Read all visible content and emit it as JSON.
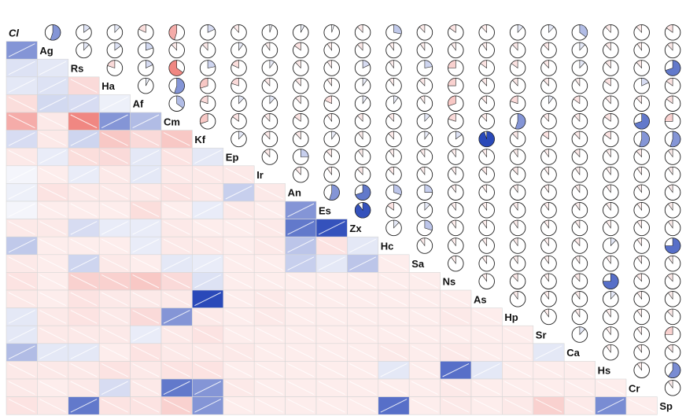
{
  "chart_data": {
    "type": "heatmap",
    "subtype": "corrgram",
    "title": "",
    "lower_panel": "shade",
    "upper_panel": "pie",
    "diagonal": "variable names",
    "colors": {
      "positive": "#1f3fb5",
      "negative": "#e8473f",
      "neutral": "#ffffff",
      "outline": "#222222"
    },
    "variables": [
      "Cl",
      "Ag",
      "Rs",
      "Ha",
      "Af",
      "Cm",
      "Kf",
      "Ep",
      "Ir",
      "An",
      "Es",
      "Zx",
      "Hc",
      "Sa",
      "Ns",
      "As",
      "Hp",
      "Sr",
      "Ca",
      "Hs",
      "Cr",
      "Sp"
    ],
    "correlations": [
      [
        1,
        0.55,
        0.15,
        0.12,
        -0.18,
        -0.45,
        0.18,
        -0.12,
        0.05,
        0.08,
        0.05,
        -0.12,
        0.28,
        -0.12,
        -0.15,
        -0.12,
        0.12,
        0.12,
        0.35,
        -0.12,
        -0.12,
        -0.15
      ],
      [
        0.55,
        1,
        0.12,
        0.15,
        0.2,
        -0.12,
        -0.12,
        0.1,
        -0.1,
        -0.15,
        -0.1,
        -0.12,
        -0.1,
        -0.1,
        -0.1,
        -0.1,
        -0.12,
        -0.12,
        0.12,
        -0.12,
        -0.1,
        -0.12
      ],
      [
        0.15,
        0.12,
        1,
        -0.2,
        0.18,
        -0.65,
        0.22,
        -0.18,
        0.1,
        -0.12,
        -0.1,
        0.18,
        -0.1,
        0.22,
        -0.25,
        -0.15,
        -0.15,
        -0.12,
        0.12,
        -0.12,
        -0.12,
        0.7
      ],
      [
        0.12,
        0.15,
        -0.2,
        1,
        0.08,
        0.55,
        -0.3,
        -0.2,
        -0.12,
        -0.12,
        -0.1,
        0.1,
        -0.1,
        -0.12,
        -0.25,
        -0.12,
        -0.12,
        -0.12,
        -0.1,
        -0.15,
        0.18,
        -0.15
      ],
      [
        -0.18,
        0.2,
        0.18,
        0.08,
        1,
        0.35,
        -0.2,
        0.12,
        0.12,
        -0.12,
        -0.18,
        0.1,
        0.1,
        -0.1,
        -0.3,
        -0.12,
        -0.2,
        0.1,
        -0.15,
        -0.12,
        -0.12,
        -0.15
      ],
      [
        -0.45,
        -0.12,
        -0.65,
        0.55,
        0.35,
        1,
        -0.3,
        -0.15,
        -0.12,
        -0.15,
        -0.1,
        -0.12,
        -0.12,
        0.12,
        -0.2,
        -0.12,
        0.55,
        -0.12,
        -0.12,
        -0.15,
        0.7,
        -0.25
      ],
      [
        0.18,
        -0.12,
        0.22,
        -0.3,
        -0.2,
        -0.3,
        1,
        0.12,
        -0.12,
        -0.12,
        0.1,
        -0.1,
        -0.12,
        0.1,
        0.15,
        0.95,
        -0.12,
        -0.15,
        -0.12,
        -0.15,
        0.55,
        0.55
      ],
      [
        -0.12,
        0.1,
        -0.18,
        -0.2,
        0.12,
        -0.15,
        0.12,
        1,
        -0.12,
        0.25,
        -0.12,
        -0.1,
        -0.1,
        -0.1,
        -0.1,
        -0.1,
        -0.1,
        -0.1,
        -0.12,
        -0.1,
        -0.12,
        -0.1
      ],
      [
        0.05,
        -0.1,
        0.1,
        -0.12,
        0.12,
        -0.12,
        -0.12,
        -0.12,
        1,
        -0.12,
        -0.1,
        -0.12,
        -0.12,
        -0.1,
        -0.1,
        -0.12,
        -0.12,
        -0.1,
        -0.1,
        -0.1,
        -0.1,
        -0.1
      ],
      [
        0.08,
        -0.15,
        -0.12,
        -0.12,
        -0.12,
        -0.15,
        -0.12,
        0.25,
        -0.12,
        1,
        0.55,
        0.7,
        0.3,
        0.25,
        -0.1,
        -0.1,
        -0.1,
        -0.1,
        -0.1,
        -0.1,
        -0.1,
        -0.1
      ],
      [
        0.05,
        -0.1,
        -0.1,
        -0.1,
        -0.18,
        -0.1,
        0.1,
        -0.12,
        -0.1,
        0.55,
        1,
        0.9,
        -0.15,
        0.12,
        -0.1,
        -0.1,
        -0.1,
        -0.1,
        -0.1,
        -0.1,
        -0.1,
        -0.1
      ],
      [
        -0.12,
        -0.12,
        0.18,
        0.1,
        0.1,
        -0.12,
        -0.1,
        -0.1,
        -0.12,
        0.7,
        0.9,
        1,
        0.12,
        0.3,
        -0.1,
        -0.1,
        -0.1,
        -0.1,
        -0.1,
        -0.1,
        -0.1,
        -0.1
      ],
      [
        0.28,
        -0.1,
        -0.1,
        -0.1,
        0.1,
        -0.12,
        -0.12,
        -0.1,
        -0.12,
        0.3,
        -0.15,
        0.12,
        1,
        -0.1,
        -0.1,
        -0.1,
        -0.1,
        -0.1,
        -0.12,
        0.12,
        -0.1,
        0.75
      ],
      [
        -0.12,
        -0.1,
        0.22,
        -0.12,
        -0.1,
        0.12,
        0.1,
        -0.1,
        -0.1,
        0.25,
        0.12,
        0.3,
        -0.1,
        1,
        -0.1,
        -0.1,
        -0.1,
        -0.1,
        -0.1,
        -0.1,
        -0.1,
        -0.1
      ],
      [
        -0.15,
        -0.1,
        -0.25,
        -0.25,
        -0.3,
        -0.2,
        0.15,
        -0.1,
        -0.1,
        -0.1,
        -0.1,
        -0.1,
        -0.1,
        -0.1,
        1,
        -0.1,
        -0.12,
        -0.1,
        -0.12,
        0.75,
        -0.12,
        -0.12
      ],
      [
        -0.12,
        -0.1,
        -0.15,
        -0.12,
        -0.12,
        -0.12,
        0.95,
        -0.1,
        -0.12,
        -0.1,
        -0.1,
        -0.1,
        -0.1,
        -0.1,
        -0.1,
        1,
        -0.1,
        -0.1,
        -0.1,
        0.12,
        -0.1,
        -0.1
      ],
      [
        0.12,
        -0.12,
        -0.15,
        -0.12,
        -0.2,
        0.55,
        -0.12,
        -0.1,
        -0.12,
        -0.1,
        -0.1,
        -0.1,
        -0.1,
        -0.1,
        -0.12,
        -0.1,
        1,
        -0.1,
        -0.1,
        -0.1,
        -0.1,
        -0.12
      ],
      [
        0.12,
        -0.12,
        -0.12,
        -0.12,
        0.1,
        -0.12,
        -0.15,
        -0.1,
        -0.1,
        -0.1,
        -0.1,
        -0.1,
        -0.1,
        -0.1,
        -0.1,
        -0.1,
        -0.1,
        1,
        0.12,
        -0.1,
        -0.1,
        -0.25
      ],
      [
        0.35,
        0.12,
        0.12,
        -0.1,
        -0.15,
        -0.12,
        -0.12,
        -0.12,
        -0.1,
        -0.1,
        -0.1,
        -0.1,
        -0.12,
        -0.1,
        -0.12,
        -0.1,
        -0.1,
        0.12,
        1,
        -0.1,
        -0.1,
        -0.12
      ],
      [
        -0.12,
        -0.12,
        -0.12,
        -0.15,
        -0.12,
        -0.15,
        -0.15,
        -0.1,
        -0.1,
        -0.1,
        -0.1,
        -0.1,
        0.12,
        -0.1,
        0.75,
        0.12,
        -0.1,
        -0.1,
        -0.1,
        1,
        -0.1,
        0.6
      ],
      [
        -0.12,
        -0.1,
        -0.12,
        0.18,
        -0.12,
        0.7,
        0.55,
        -0.12,
        -0.1,
        -0.1,
        -0.1,
        -0.1,
        -0.1,
        -0.1,
        -0.12,
        -0.1,
        -0.1,
        -0.1,
        -0.1,
        -0.1,
        1,
        -0.1
      ],
      [
        -0.15,
        -0.12,
        0.7,
        -0.15,
        -0.15,
        -0.25,
        0.55,
        -0.1,
        -0.1,
        -0.1,
        -0.1,
        -0.1,
        0.75,
        -0.1,
        -0.12,
        -0.1,
        -0.12,
        -0.25,
        -0.12,
        0.6,
        -0.1,
        1
      ]
    ]
  }
}
